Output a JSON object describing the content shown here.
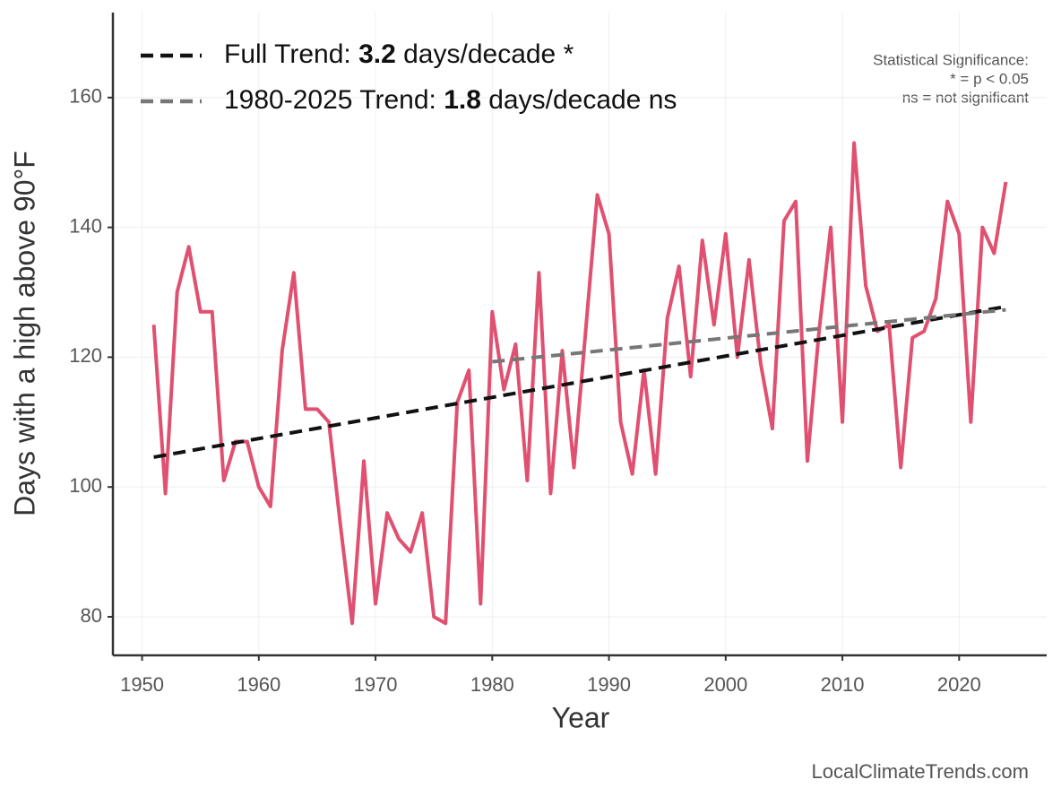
{
  "chart_data": {
    "type": "line",
    "x_label": "Year",
    "y_label": "Days with a high above 90°F",
    "x": [
      1951,
      1952,
      1953,
      1954,
      1955,
      1956,
      1957,
      1958,
      1959,
      1960,
      1961,
      1962,
      1963,
      1964,
      1965,
      1966,
      1967,
      1968,
      1969,
      1970,
      1971,
      1972,
      1973,
      1974,
      1975,
      1976,
      1977,
      1978,
      1979,
      1980,
      1981,
      1982,
      1983,
      1984,
      1985,
      1986,
      1987,
      1988,
      1989,
      1990,
      1991,
      1992,
      1993,
      1994,
      1995,
      1996,
      1997,
      1998,
      1999,
      2000,
      2001,
      2002,
      2003,
      2004,
      2005,
      2006,
      2007,
      2008,
      2009,
      2010,
      2011,
      2012,
      2013,
      2014,
      2015,
      2016,
      2017,
      2018,
      2019,
      2020,
      2021,
      2022,
      2023,
      2024
    ],
    "series": [
      {
        "color": "#e05070",
        "values": [
          125,
          99,
          130,
          137,
          127,
          127,
          101,
          107,
          107,
          100,
          97,
          121,
          133,
          112,
          112,
          110,
          94,
          79,
          104,
          82,
          96,
          92,
          90,
          96,
          80,
          79,
          113,
          118,
          82,
          127,
          115,
          122,
          101,
          133,
          99,
          121,
          103,
          124,
          145,
          139,
          110,
          102,
          118,
          102,
          126,
          134,
          117,
          138,
          125,
          139,
          120,
          135,
          119,
          109,
          141,
          144,
          104,
          124,
          140,
          110,
          153,
          131,
          124,
          125,
          103,
          123,
          124,
          129,
          144,
          139,
          110,
          140,
          136,
          147
        ]
      },
      {
        "name_parts": [
          "Full Trend: ",
          "3.2",
          " days/decade *"
        ],
        "color": "#111111",
        "dashed": true,
        "x": [
          1951,
          2024
        ],
        "values": [
          104.6,
          127.8
        ]
      },
      {
        "name_parts": [
          "1980-2025 Trend: ",
          "1.8",
          " days/decade ns"
        ],
        "color": "#777777",
        "dashed": true,
        "x": [
          1980,
          2024
        ],
        "values": [
          119.3,
          127.3
        ]
      }
    ],
    "xlim": [
      1947.5,
      2027.5
    ],
    "xticks": [
      1950,
      1960,
      1970,
      1980,
      1990,
      2000,
      2010,
      2020
    ],
    "ylim": [
      74.06,
      173.1
    ],
    "yticks": [
      80,
      100,
      120,
      140,
      160
    ],
    "grid": true,
    "annotations": [
      "Statistical Significance:",
      "* = p < 0.05",
      "ns = not significant"
    ],
    "source": "LocalClimateTrends.com"
  }
}
